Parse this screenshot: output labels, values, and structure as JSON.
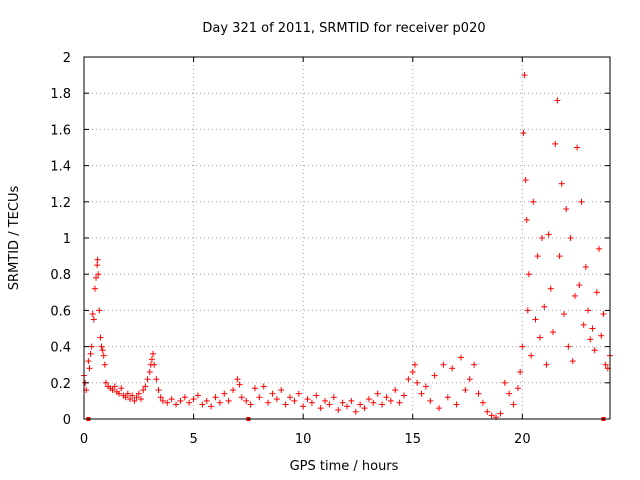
{
  "chart_data": {
    "type": "scatter",
    "title": "Day 321 of 2011, SRMTID for receiver p020",
    "xlabel": "GPS time / hours",
    "ylabel": "SRMTID / TECUs",
    "xlim": [
      0,
      24
    ],
    "ylim": [
      0,
      2
    ],
    "xticks": [
      0,
      5,
      10,
      15,
      20
    ],
    "xtick_labels": [
      "0",
      "5",
      "10",
      "15",
      "20"
    ],
    "yticks": [
      0,
      0.2,
      0.4,
      0.6,
      0.8,
      1,
      1.2,
      1.4,
      1.6,
      1.8,
      2
    ],
    "ytick_labels": [
      "0",
      "0.2",
      "0.4",
      "0.6",
      "0.8",
      "1",
      "1.2",
      "1.4",
      "1.6",
      "1.8",
      "2"
    ],
    "grid": true,
    "marker": "+",
    "series_color": "#ff0000",
    "gap_markers_x": [
      0.2,
      7.5,
      23.7
    ],
    "series": [
      {
        "name": "SRMTID",
        "points": [
          [
            0.0,
            0.24
          ],
          [
            0.05,
            0.2
          ],
          [
            0.1,
            0.16
          ],
          [
            0.2,
            0.32
          ],
          [
            0.25,
            0.28
          ],
          [
            0.3,
            0.36
          ],
          [
            0.35,
            0.4
          ],
          [
            0.4,
            0.58
          ],
          [
            0.45,
            0.55
          ],
          [
            0.5,
            0.72
          ],
          [
            0.55,
            0.78
          ],
          [
            0.6,
            0.85
          ],
          [
            0.62,
            0.88
          ],
          [
            0.65,
            0.8
          ],
          [
            0.7,
            0.6
          ],
          [
            0.75,
            0.45
          ],
          [
            0.8,
            0.4
          ],
          [
            0.85,
            0.38
          ],
          [
            0.9,
            0.35
          ],
          [
            0.95,
            0.3
          ],
          [
            1.0,
            0.2
          ],
          [
            1.1,
            0.18
          ],
          [
            1.2,
            0.17
          ],
          [
            1.3,
            0.16
          ],
          [
            1.4,
            0.18
          ],
          [
            1.5,
            0.15
          ],
          [
            1.6,
            0.14
          ],
          [
            1.7,
            0.17
          ],
          [
            1.8,
            0.13
          ],
          [
            1.9,
            0.12
          ],
          [
            2.0,
            0.14
          ],
          [
            2.1,
            0.11
          ],
          [
            2.2,
            0.13
          ],
          [
            2.3,
            0.1
          ],
          [
            2.4,
            0.12
          ],
          [
            2.5,
            0.14
          ],
          [
            2.6,
            0.11
          ],
          [
            2.7,
            0.16
          ],
          [
            2.8,
            0.18
          ],
          [
            2.9,
            0.22
          ],
          [
            3.0,
            0.26
          ],
          [
            3.05,
            0.3
          ],
          [
            3.1,
            0.33
          ],
          [
            3.15,
            0.36
          ],
          [
            3.2,
            0.3
          ],
          [
            3.3,
            0.22
          ],
          [
            3.4,
            0.16
          ],
          [
            3.5,
            0.12
          ],
          [
            3.6,
            0.1
          ],
          [
            3.8,
            0.09
          ],
          [
            4.0,
            0.11
          ],
          [
            4.2,
            0.08
          ],
          [
            4.4,
            0.1
          ],
          [
            4.6,
            0.12
          ],
          [
            4.8,
            0.09
          ],
          [
            5.0,
            0.11
          ],
          [
            5.2,
            0.13
          ],
          [
            5.4,
            0.08
          ],
          [
            5.6,
            0.1
          ],
          [
            5.8,
            0.07
          ],
          [
            6.0,
            0.12
          ],
          [
            6.2,
            0.09
          ],
          [
            6.4,
            0.14
          ],
          [
            6.6,
            0.1
          ],
          [
            6.8,
            0.16
          ],
          [
            7.0,
            0.22
          ],
          [
            7.1,
            0.19
          ],
          [
            7.2,
            0.12
          ],
          [
            7.4,
            0.1
          ],
          [
            7.6,
            0.08
          ],
          [
            7.8,
            0.17
          ],
          [
            8.0,
            0.12
          ],
          [
            8.2,
            0.18
          ],
          [
            8.4,
            0.09
          ],
          [
            8.6,
            0.14
          ],
          [
            8.8,
            0.11
          ],
          [
            9.0,
            0.16
          ],
          [
            9.2,
            0.08
          ],
          [
            9.4,
            0.12
          ],
          [
            9.6,
            0.1
          ],
          [
            9.8,
            0.14
          ],
          [
            10.0,
            0.07
          ],
          [
            10.2,
            0.11
          ],
          [
            10.4,
            0.09
          ],
          [
            10.6,
            0.13
          ],
          [
            10.8,
            0.06
          ],
          [
            11.0,
            0.1
          ],
          [
            11.2,
            0.08
          ],
          [
            11.4,
            0.12
          ],
          [
            11.6,
            0.05
          ],
          [
            11.8,
            0.09
          ],
          [
            12.0,
            0.07
          ],
          [
            12.2,
            0.1
          ],
          [
            12.4,
            0.04
          ],
          [
            12.6,
            0.08
          ],
          [
            12.8,
            0.06
          ],
          [
            13.0,
            0.11
          ],
          [
            13.2,
            0.09
          ],
          [
            13.4,
            0.14
          ],
          [
            13.6,
            0.08
          ],
          [
            13.8,
            0.12
          ],
          [
            14.0,
            0.1
          ],
          [
            14.2,
            0.16
          ],
          [
            14.4,
            0.09
          ],
          [
            14.6,
            0.13
          ],
          [
            14.8,
            0.22
          ],
          [
            15.0,
            0.26
          ],
          [
            15.1,
            0.3
          ],
          [
            15.2,
            0.2
          ],
          [
            15.4,
            0.14
          ],
          [
            15.6,
            0.18
          ],
          [
            15.8,
            0.1
          ],
          [
            16.0,
            0.24
          ],
          [
            16.2,
            0.06
          ],
          [
            16.4,
            0.3
          ],
          [
            16.6,
            0.12
          ],
          [
            16.8,
            0.28
          ],
          [
            17.0,
            0.08
          ],
          [
            17.2,
            0.34
          ],
          [
            17.4,
            0.16
          ],
          [
            17.6,
            0.22
          ],
          [
            17.8,
            0.3
          ],
          [
            18.0,
            0.14
          ],
          [
            18.2,
            0.09
          ],
          [
            18.4,
            0.04
          ],
          [
            18.6,
            0.02
          ],
          [
            18.8,
            0.01
          ],
          [
            19.0,
            0.03
          ],
          [
            19.2,
            0.2
          ],
          [
            19.4,
            0.14
          ],
          [
            19.6,
            0.08
          ],
          [
            19.8,
            0.17
          ],
          [
            19.9,
            0.26
          ],
          [
            20.0,
            0.4
          ],
          [
            20.05,
            1.58
          ],
          [
            20.1,
            1.9
          ],
          [
            20.15,
            1.32
          ],
          [
            20.2,
            1.1
          ],
          [
            20.25,
            0.6
          ],
          [
            20.3,
            0.8
          ],
          [
            20.4,
            0.35
          ],
          [
            20.5,
            1.2
          ],
          [
            20.6,
            0.55
          ],
          [
            20.7,
            0.9
          ],
          [
            20.8,
            0.45
          ],
          [
            20.9,
            1.0
          ],
          [
            21.0,
            0.62
          ],
          [
            21.1,
            0.3
          ],
          [
            21.2,
            1.02
          ],
          [
            21.3,
            0.72
          ],
          [
            21.4,
            0.48
          ],
          [
            21.5,
            1.52
          ],
          [
            21.6,
            1.76
          ],
          [
            21.7,
            0.9
          ],
          [
            21.8,
            1.3
          ],
          [
            21.9,
            0.58
          ],
          [
            22.0,
            1.16
          ],
          [
            22.1,
            0.4
          ],
          [
            22.2,
            1.0
          ],
          [
            22.3,
            0.32
          ],
          [
            22.4,
            0.68
          ],
          [
            22.5,
            1.5
          ],
          [
            22.6,
            0.74
          ],
          [
            22.7,
            1.2
          ],
          [
            22.8,
            0.52
          ],
          [
            22.9,
            0.84
          ],
          [
            23.0,
            0.6
          ],
          [
            23.1,
            0.44
          ],
          [
            23.2,
            0.5
          ],
          [
            23.3,
            0.38
          ],
          [
            23.4,
            0.7
          ],
          [
            23.5,
            0.94
          ],
          [
            23.6,
            0.46
          ],
          [
            23.7,
            0.58
          ],
          [
            23.8,
            0.3
          ],
          [
            23.9,
            0.28
          ],
          [
            24.0,
            0.35
          ]
        ]
      }
    ]
  }
}
